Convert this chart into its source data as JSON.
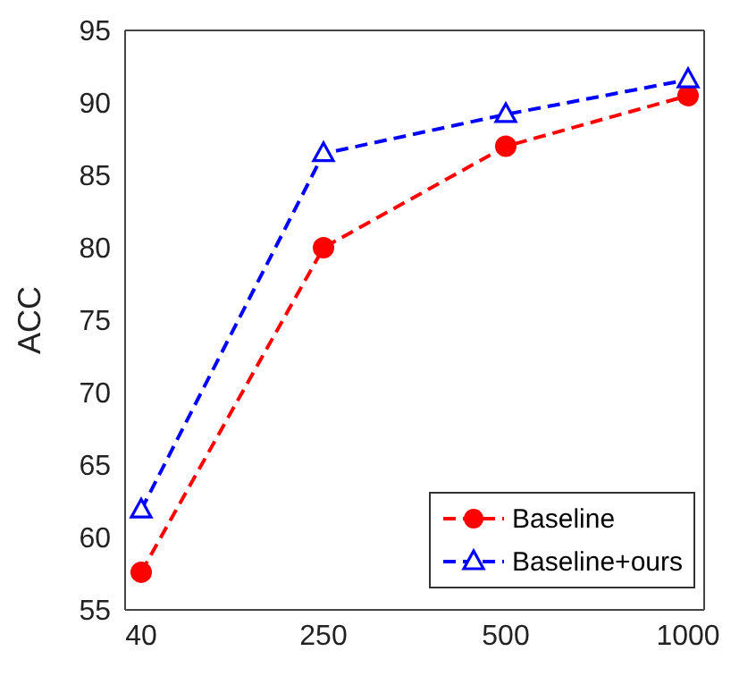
{
  "chart_data": {
    "type": "line",
    "ylabel": "ACC",
    "categories": [
      "40",
      "250",
      "500",
      "1000"
    ],
    "series": [
      {
        "name": "Baseline",
        "color": "#ff0000",
        "values": [
          57.6,
          80.0,
          87.0,
          90.5
        ],
        "marker": "circle",
        "line_style": "dashed"
      },
      {
        "name": "Baseline+ours",
        "color": "#0000ff",
        "values": [
          61.9,
          86.5,
          89.2,
          91.6
        ],
        "marker": "triangle",
        "line_style": "dashed"
      }
    ],
    "ylim": [
      55,
      95
    ],
    "yticks": [
      55,
      60,
      65,
      70,
      75,
      80,
      85,
      90,
      95
    ],
    "grid": false,
    "legend": "bottom right"
  }
}
